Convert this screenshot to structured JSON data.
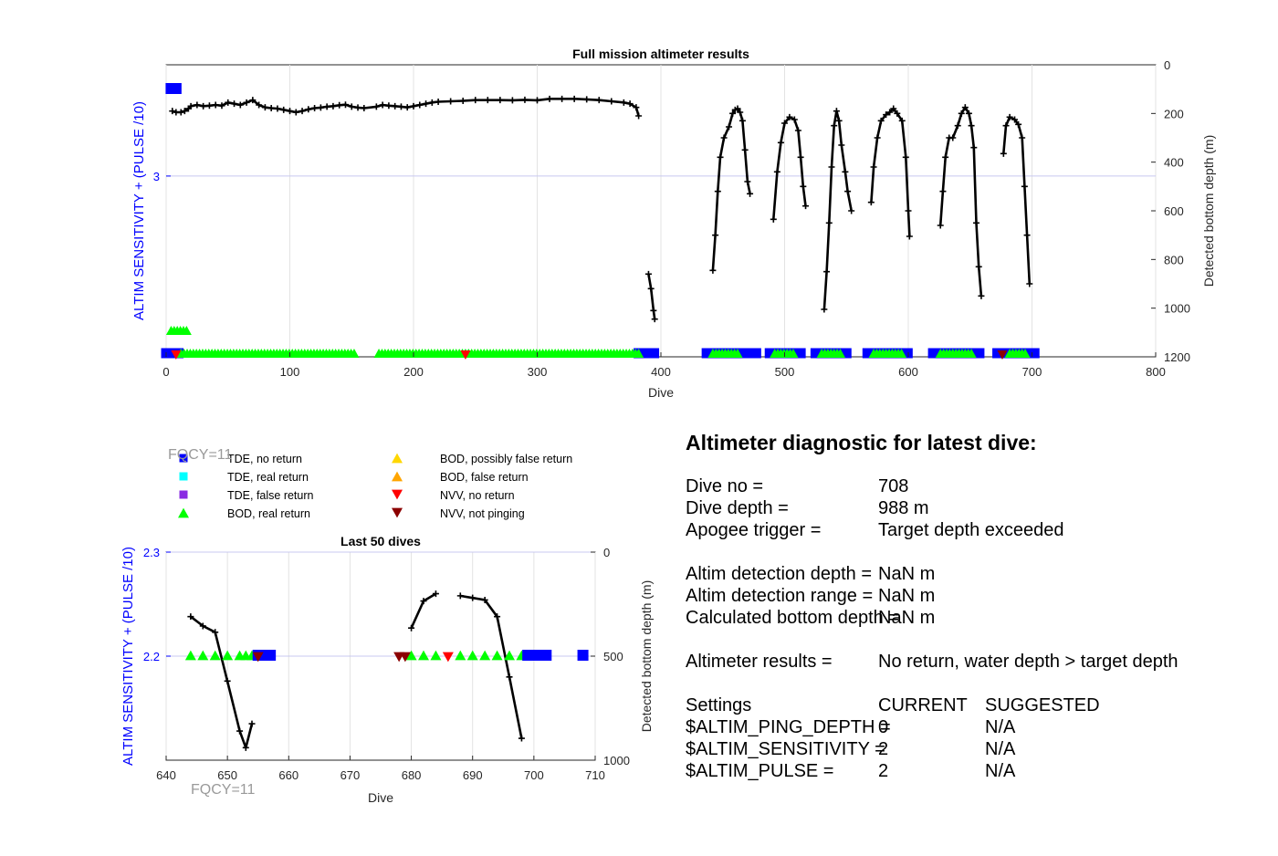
{
  "chart_data": [
    {
      "type": "scatter",
      "title": "Full mission altimeter results",
      "xlabel": "Dive",
      "ylabel_left": "ALTIM SENSITIVITY + (PULSE /10)",
      "ylabel_right": "Detected bottom depth (m)",
      "xlim": [
        0,
        800
      ],
      "xticks": [
        "0",
        "100",
        "200",
        "300",
        "400",
        "500",
        "600",
        "700",
        "800"
      ],
      "ylim_left": [
        1.7,
        3.8
      ],
      "yticks_left": [
        "3"
      ],
      "ylim_right": [
        0,
        1200
      ],
      "yticks_right": [
        "0",
        "200",
        "400",
        "600",
        "800",
        "1000",
        "1200"
      ],
      "grid": true,
      "depth_segments": [
        [
          [
            5,
            190
          ],
          [
            8,
            195
          ],
          [
            12,
            195
          ],
          [
            15,
            190
          ],
          [
            18,
            180
          ],
          [
            20,
            170
          ],
          [
            25,
            165
          ],
          [
            30,
            170
          ],
          [
            35,
            168
          ],
          [
            40,
            165
          ],
          [
            45,
            168
          ],
          [
            50,
            155
          ],
          [
            55,
            160
          ],
          [
            60,
            165
          ],
          [
            65,
            155
          ],
          [
            70,
            145
          ],
          [
            75,
            165
          ],
          [
            80,
            175
          ],
          [
            85,
            178
          ],
          [
            90,
            180
          ],
          [
            95,
            185
          ],
          [
            100,
            190
          ],
          [
            105,
            195
          ],
          [
            110,
            190
          ],
          [
            115,
            183
          ],
          [
            120,
            178
          ],
          [
            125,
            176
          ],
          [
            130,
            172
          ],
          [
            135,
            170
          ],
          [
            140,
            166
          ],
          [
            145,
            164
          ],
          [
            150,
            172
          ],
          [
            155,
            176
          ],
          [
            160,
            178
          ],
          [
            170,
            172
          ],
          [
            175,
            165
          ],
          [
            180,
            168
          ],
          [
            185,
            170
          ],
          [
            190,
            172
          ],
          [
            195,
            175
          ],
          [
            200,
            170
          ],
          [
            205,
            165
          ],
          [
            210,
            160
          ],
          [
            215,
            155
          ],
          [
            220,
            152
          ],
          [
            230,
            150
          ],
          [
            240,
            148
          ],
          [
            250,
            145
          ],
          [
            260,
            145
          ],
          [
            270,
            145
          ],
          [
            280,
            146
          ],
          [
            290,
            144
          ],
          [
            300,
            146
          ],
          [
            310,
            140
          ],
          [
            320,
            140
          ],
          [
            330,
            140
          ],
          [
            340,
            142
          ],
          [
            350,
            145
          ],
          [
            360,
            150
          ],
          [
            370,
            155
          ],
          [
            375,
            160
          ],
          [
            380,
            175
          ],
          [
            382,
            210
          ]
        ],
        [
          [
            390,
            860
          ],
          [
            392,
            920
          ],
          [
            394,
            1010
          ],
          [
            395,
            1045
          ]
        ],
        [
          [
            442,
            845
          ],
          [
            444,
            700
          ],
          [
            446,
            520
          ],
          [
            448,
            380
          ],
          [
            451,
            300
          ],
          [
            455,
            255
          ],
          [
            458,
            200
          ],
          [
            460,
            185
          ],
          [
            462,
            180
          ],
          [
            464,
            195
          ],
          [
            466,
            230
          ],
          [
            468,
            350
          ],
          [
            470,
            480
          ],
          [
            472,
            530
          ]
        ],
        [
          [
            491,
            635
          ],
          [
            494,
            440
          ],
          [
            497,
            320
          ],
          [
            500,
            240
          ],
          [
            504,
            215
          ],
          [
            508,
            225
          ],
          [
            511,
            270
          ],
          [
            513,
            380
          ],
          [
            515,
            500
          ],
          [
            517,
            580
          ]
        ],
        [
          [
            532,
            1005
          ],
          [
            534,
            850
          ],
          [
            536,
            650
          ],
          [
            538,
            420
          ],
          [
            540,
            250
          ],
          [
            542,
            190
          ],
          [
            544,
            230
          ],
          [
            546,
            330
          ],
          [
            549,
            440
          ],
          [
            551,
            520
          ],
          [
            554,
            600
          ]
        ],
        [
          [
            570,
            565
          ],
          [
            572,
            420
          ],
          [
            575,
            300
          ],
          [
            578,
            230
          ],
          [
            582,
            205
          ],
          [
            585,
            195
          ],
          [
            588,
            180
          ],
          [
            591,
            200
          ],
          [
            595,
            230
          ],
          [
            598,
            380
          ],
          [
            600,
            600
          ],
          [
            601,
            705
          ]
        ],
        [
          [
            626,
            660
          ],
          [
            628,
            520
          ],
          [
            630,
            380
          ],
          [
            633,
            300
          ],
          [
            636,
            300
          ],
          [
            640,
            250
          ],
          [
            643,
            200
          ],
          [
            646,
            175
          ],
          [
            649,
            200
          ],
          [
            651,
            250
          ],
          [
            653,
            340
          ],
          [
            655,
            650
          ],
          [
            657,
            830
          ],
          [
            659,
            950
          ]
        ],
        [
          [
            677,
            365
          ],
          [
            679,
            250
          ],
          [
            682,
            215
          ],
          [
            686,
            225
          ],
          [
            689,
            245
          ],
          [
            692,
            300
          ],
          [
            694,
            500
          ],
          [
            696,
            700
          ],
          [
            698,
            900
          ]
        ]
      ],
      "markers": [
        {
          "series": "TDE, no return",
          "x_ranges": [
            [
              0,
              10
            ],
            [
              382,
              396
            ],
            [
              437,
              478
            ],
            [
              488,
              515
            ],
            [
              525,
              550
            ],
            [
              567,
              600
            ],
            [
              620,
              658
            ],
            [
              672,
              702
            ]
          ],
          "level": "sensitivity"
        },
        {
          "series": "BOD, real return",
          "x_ranges": [
            [
              12,
              152
            ],
            [
              172,
              383
            ],
            [
              442,
              462
            ],
            [
              492,
              508
            ],
            [
              530,
              545
            ],
            [
              572,
              595
            ],
            [
              626,
              651
            ],
            [
              682,
              695
            ]
          ],
          "level": "sensitivity"
        },
        {
          "series": "NVV, no return",
          "x": [
            8,
            242
          ]
        },
        {
          "series": "NVV, not pinging",
          "x": [
            676
          ]
        }
      ]
    },
    {
      "type": "scatter",
      "title": "Last 50 dives",
      "xlabel": "Dive",
      "ylabel_left": "ALTIM SENSITIVITY + (PULSE /10)",
      "ylabel_right": "Detected bottom depth (m)",
      "xlim": [
        640,
        710
      ],
      "xticks": [
        "640",
        "650",
        "660",
        "670",
        "680",
        "690",
        "700",
        "710"
      ],
      "ylim_left": [
        2.1,
        2.3
      ],
      "yticks_left": [
        "2.3",
        "2.2"
      ],
      "ylim_right": [
        0,
        1000
      ],
      "yticks_right": [
        "0",
        "500",
        "1000"
      ],
      "grid": true,
      "depth_segments": [
        [
          [
            644,
            310
          ],
          [
            646,
            355
          ],
          [
            648,
            385
          ],
          [
            650,
            620
          ],
          [
            652,
            860
          ],
          [
            653,
            940
          ],
          [
            654,
            825
          ]
        ],
        [
          [
            680,
            365
          ],
          [
            682,
            235
          ],
          [
            684,
            200
          ]
        ],
        [
          [
            688,
            210
          ],
          [
            690,
            220
          ],
          [
            692,
            230
          ],
          [
            694,
            310
          ],
          [
            696,
            600
          ],
          [
            698,
            895
          ]
        ]
      ],
      "markers": [
        {
          "series": "BOD, real return",
          "x": [
            644,
            646,
            648,
            650,
            652,
            653,
            654,
            680,
            682,
            684,
            688,
            690,
            692,
            694,
            696,
            698
          ]
        },
        {
          "series": "TDE, no return",
          "x": [
            655,
            656,
            657,
            699,
            700,
            701,
            702,
            708
          ]
        },
        {
          "series": "NVV, not pinging",
          "x": [
            655,
            678,
            679
          ]
        },
        {
          "series": "NVV, no return",
          "x": [
            686
          ]
        }
      ]
    }
  ],
  "legend": [
    {
      "label": "TDE, no return",
      "shape": "square",
      "color": "#0000ff"
    },
    {
      "label": "TDE, real return",
      "shape": "square",
      "color": "#00ffff"
    },
    {
      "label": "TDE, false return",
      "shape": "square",
      "color": "#8a2be2"
    },
    {
      "label": "BOD, real return",
      "shape": "triangle-up",
      "color": "#00ff00"
    },
    {
      "label": "BOD, possibly false return",
      "shape": "triangle-up",
      "color": "#ffd700"
    },
    {
      "label": "BOD, false return",
      "shape": "triangle-up",
      "color": "#ffa500"
    },
    {
      "label": "NVV, no return",
      "shape": "triangle-down",
      "color": "#ff0000"
    },
    {
      "label": "NVV, not pinging",
      "shape": "triangle-down",
      "color": "#8b0000"
    }
  ],
  "fqcy_label": "FQCY=11",
  "diagnostic": {
    "title": "Altimeter diagnostic for latest dive:",
    "rows": [
      {
        "label": "Dive no =",
        "value": "708"
      },
      {
        "label": "Dive depth =",
        "value": "988 m"
      },
      {
        "label": "Apogee trigger =",
        "value": "Target depth exceeded"
      },
      {
        "label": "Altim detection depth =",
        "value": "NaN m"
      },
      {
        "label": "Altim detection range =",
        "value": "NaN m"
      },
      {
        "label": "Calculated bottom depth =",
        "value": "NaN m"
      },
      {
        "label": "Altimeter results =",
        "value": "No return, water depth > target depth"
      }
    ],
    "settings": {
      "header": {
        "label": "Settings",
        "current": "CURRENT",
        "suggested": "SUGGESTED"
      },
      "rows": [
        {
          "label": "$ALTIM_PING_DEPTH =",
          "current": "0",
          "suggested": "N/A"
        },
        {
          "label": "$ALTIM_SENSITIVITY =",
          "current": "2",
          "suggested": "N/A"
        },
        {
          "label": "$ALTIM_PULSE =",
          "current": "2",
          "suggested": "N/A"
        }
      ]
    }
  }
}
